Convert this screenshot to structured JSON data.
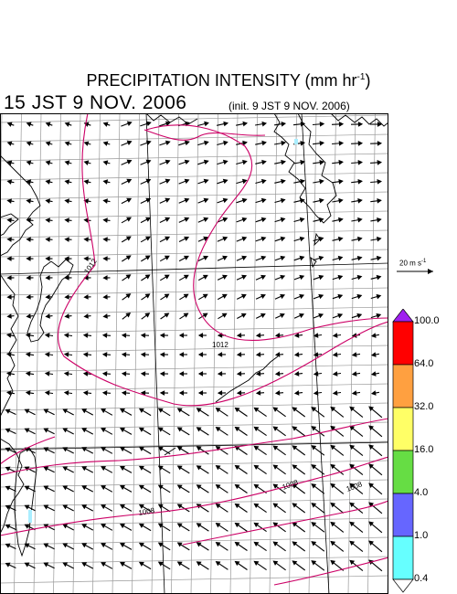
{
  "title": {
    "main": "PRECIPITATION INTENSITY (mm hr",
    "sup": "-1",
    "close": ")"
  },
  "datetime": "15 JST 9 NOV. 2006",
  "init": "(init. 9 JST 9 NOV. 2006)",
  "wind_scale": {
    "value": "20 m s",
    "sup": "-1"
  },
  "isobar_labels": [
    "1012",
    "1012",
    "1008",
    "1008",
    "1008"
  ],
  "colorbar": {
    "levels": [
      "100.0",
      "64.0",
      "32.0",
      "16.0",
      "4.0",
      "1.0",
      "0.4"
    ],
    "colors": [
      "#a020f0",
      "#ff0000",
      "#ffa040",
      "#ffff66",
      "#66dd44",
      "#6666ff",
      "#66ffff",
      "#ffffff"
    ]
  },
  "colors": {
    "isobar": "#cc0066",
    "grid": "#999999",
    "coast": "#000000",
    "rain": "#aaeeff"
  }
}
